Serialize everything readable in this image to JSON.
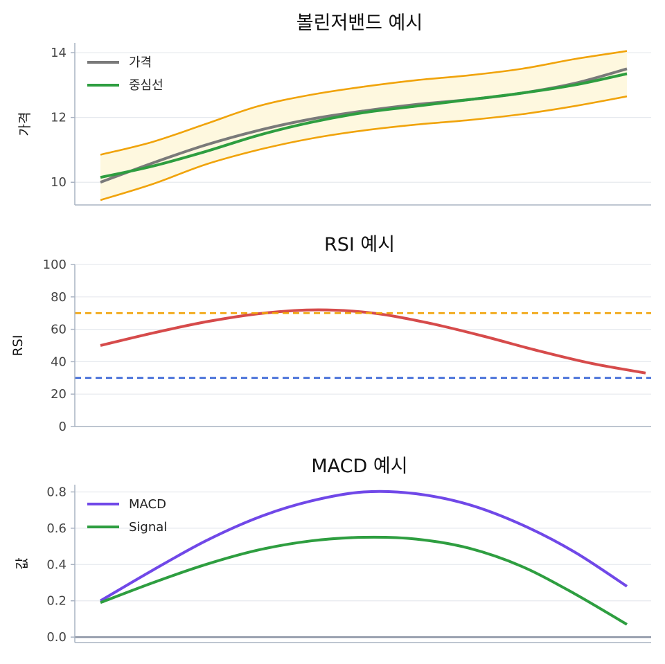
{
  "chart_data": [
    {
      "type": "line",
      "title": "볼린저밴드 예시",
      "xlabel": "",
      "ylabel": "가격",
      "ylim": [
        9.3,
        14.3
      ],
      "yticks": [
        10,
        12,
        14
      ],
      "ytick_labels": [
        "10",
        "12",
        "14"
      ],
      "x": [
        0,
        10,
        20,
        30,
        40,
        50,
        60,
        70,
        80,
        90,
        100
      ],
      "series": [
        {
          "name": "가격",
          "color": "#7a7a7a",
          "values": [
            10.0,
            10.6,
            11.15,
            11.6,
            11.95,
            12.2,
            12.4,
            12.55,
            12.75,
            13.05,
            13.5
          ]
        },
        {
          "name": "중심선",
          "color": "#2e9e40",
          "values": [
            10.15,
            10.5,
            10.95,
            11.45,
            11.85,
            12.15,
            12.35,
            12.55,
            12.75,
            13.0,
            13.35
          ]
        }
      ],
      "band": {
        "color": "#f0a30a",
        "fill": "#fef8df",
        "upper": [
          10.85,
          11.25,
          11.8,
          12.35,
          12.7,
          12.95,
          13.15,
          13.3,
          13.5,
          13.8,
          14.05
        ],
        "lower": [
          9.45,
          9.95,
          10.55,
          11.0,
          11.35,
          11.6,
          11.78,
          11.92,
          12.1,
          12.35,
          12.65
        ]
      },
      "legend": {
        "position": "top-left",
        "entries": [
          "가격",
          "중심선"
        ]
      }
    },
    {
      "type": "line",
      "title": "RSI 예시",
      "xlabel": "",
      "ylabel": "RSI",
      "ylim": [
        0,
        100
      ],
      "yticks": [
        0,
        20,
        40,
        60,
        80,
        100
      ],
      "ytick_labels": [
        "0",
        "20",
        "40",
        "60",
        "80",
        "100"
      ],
      "x": [
        0,
        10,
        20,
        30,
        40,
        50,
        60,
        70,
        80,
        90,
        100
      ],
      "series": [
        {
          "name": "RSI",
          "color": "#d64b4b",
          "values": [
            50,
            58,
            65,
            70,
            72,
            70,
            64,
            56,
            47,
            39,
            33
          ]
        }
      ],
      "hlines": [
        {
          "value": 70,
          "color": "#f0a30a",
          "style": "dashed"
        },
        {
          "value": 30,
          "color": "#3a66d6",
          "style": "dashed"
        }
      ]
    },
    {
      "type": "line",
      "title": "MACD 예시",
      "xlabel": "",
      "ylabel": "값",
      "ylim": [
        -0.03,
        0.84
      ],
      "yticks": [
        0.0,
        0.2,
        0.4,
        0.6,
        0.8
      ],
      "ytick_labels": [
        "0.0",
        "0.2",
        "0.4",
        "0.6",
        "0.8"
      ],
      "x": [
        0,
        10,
        20,
        30,
        40,
        50,
        60,
        70,
        80,
        90,
        100
      ],
      "series": [
        {
          "name": "MACD",
          "color": "#7048e8",
          "values": [
            0.2,
            0.37,
            0.53,
            0.66,
            0.75,
            0.8,
            0.79,
            0.73,
            0.62,
            0.47,
            0.28
          ]
        },
        {
          "name": "Signal",
          "color": "#2e9e40",
          "values": [
            0.19,
            0.3,
            0.4,
            0.48,
            0.53,
            0.55,
            0.54,
            0.49,
            0.39,
            0.24,
            0.07
          ]
        }
      ],
      "zero_line": true,
      "legend": {
        "position": "top-left",
        "entries": [
          "MACD",
          "Signal"
        ]
      }
    }
  ]
}
